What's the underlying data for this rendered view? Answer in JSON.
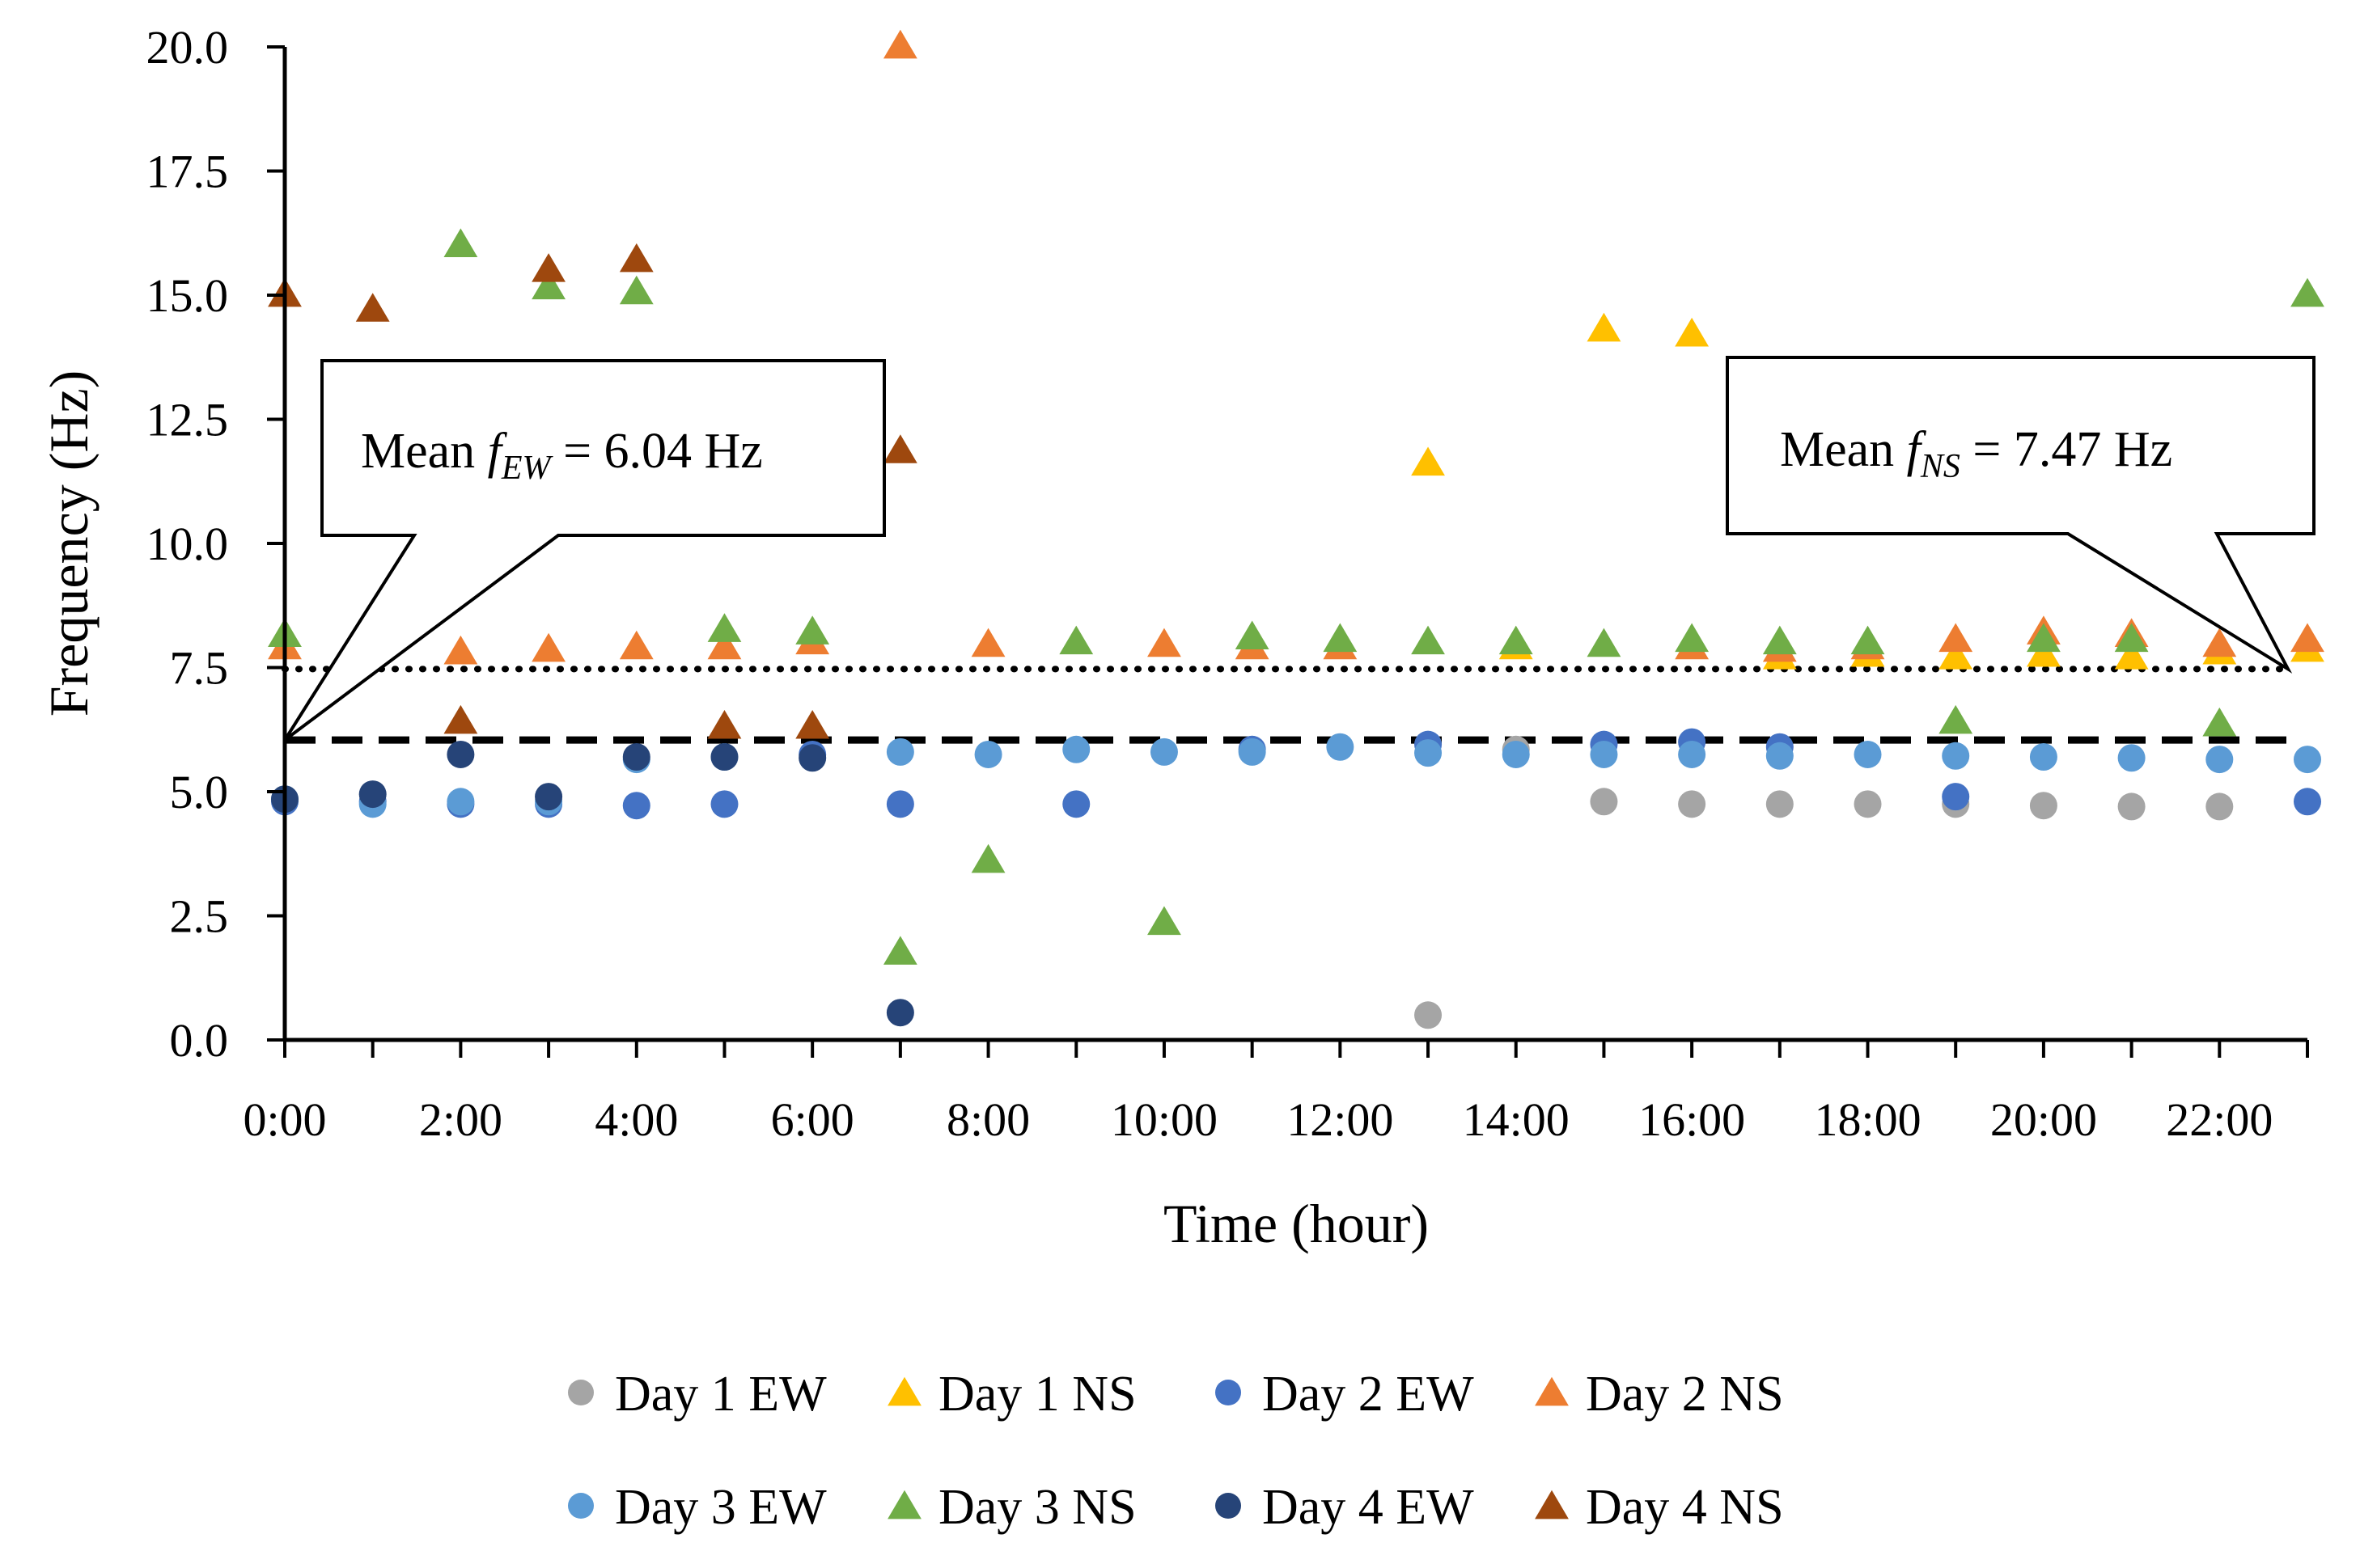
{
  "chart_data": {
    "type": "scatter",
    "xlabel": "Time (hour)",
    "ylabel": "Frequency (Hz)",
    "xlim": [
      0,
      23
    ],
    "ylim": [
      0,
      20
    ],
    "x_ticks": [
      0,
      2,
      4,
      6,
      8,
      10,
      12,
      14,
      16,
      18,
      20,
      22
    ],
    "x_tick_labels": [
      "0:00",
      "2:00",
      "4:00",
      "6:00",
      "8:00",
      "10:00",
      "12:00",
      "14:00",
      "16:00",
      "18:00",
      "20:00",
      "22:00"
    ],
    "y_ticks": [
      0,
      2.5,
      5,
      7.5,
      10,
      12.5,
      15,
      17.5,
      20
    ],
    "y_tick_labels": [
      "0.0",
      "2.5",
      "5.0",
      "7.5",
      "10.0",
      "12.5",
      "15.0",
      "17.5",
      "20.0"
    ],
    "mean_lines": [
      {
        "name": "Mean fEW",
        "value": 6.04,
        "style": "dashed"
      },
      {
        "name": "Mean fNS",
        "value": 7.47,
        "style": "dotted"
      }
    ],
    "callouts": [
      {
        "prefix": "Mean ",
        "symbol": "f",
        "subscript": "EW",
        "suffix": " = 6.04 Hz",
        "anchor_x": 0,
        "anchor_y": 6.04
      },
      {
        "prefix": "Mean ",
        "symbol": "f",
        "subscript": "NS",
        "suffix": " = 7.47 Hz",
        "anchor_x": 23,
        "anchor_y": 7.47
      }
    ],
    "series": [
      {
        "name": "Day 1 EW",
        "marker": "circle",
        "color": "#a5a5a5",
        "points": [
          [
            13,
            0.5
          ],
          [
            14,
            5.85
          ],
          [
            15,
            4.8
          ],
          [
            16,
            4.75
          ],
          [
            17,
            4.75
          ],
          [
            18,
            4.75
          ],
          [
            19,
            4.75
          ],
          [
            20,
            4.72
          ],
          [
            21,
            4.7
          ],
          [
            22,
            4.7
          ]
        ]
      },
      {
        "name": "Day 1 NS",
        "marker": "triangle",
        "color": "#ffc000",
        "points": [
          [
            13,
            11.6
          ],
          [
            14,
            7.9
          ],
          [
            15,
            14.3
          ],
          [
            16,
            14.2
          ],
          [
            17,
            7.7
          ],
          [
            18,
            7.75
          ],
          [
            19,
            7.7
          ],
          [
            20,
            7.75
          ],
          [
            21,
            7.7
          ],
          [
            22,
            7.8
          ],
          [
            23,
            7.85
          ]
        ]
      },
      {
        "name": "Day 2 EW",
        "marker": "circle",
        "color": "#4472c4",
        "points": [
          [
            0,
            4.8
          ],
          [
            1,
            4.8
          ],
          [
            2,
            4.75
          ],
          [
            3,
            4.75
          ],
          [
            4,
            4.72
          ],
          [
            5,
            4.75
          ],
          [
            6,
            5.75
          ],
          [
            7,
            4.75
          ],
          [
            9,
            4.75
          ],
          [
            11,
            5.85
          ],
          [
            13,
            5.95
          ],
          [
            15,
            5.95
          ],
          [
            16,
            6.0
          ],
          [
            17,
            5.9
          ],
          [
            19,
            4.9
          ],
          [
            23,
            4.8
          ]
        ]
      },
      {
        "name": "Day 2 NS",
        "marker": "triangle",
        "color": "#ed7d31",
        "points": [
          [
            0,
            7.9
          ],
          [
            2,
            7.8
          ],
          [
            3,
            7.85
          ],
          [
            4,
            7.9
          ],
          [
            5,
            7.9
          ],
          [
            6,
            8.0
          ],
          [
            7,
            20.0
          ],
          [
            8,
            7.95
          ],
          [
            10,
            7.95
          ],
          [
            11,
            7.9
          ],
          [
            12,
            7.9
          ],
          [
            16,
            7.9
          ],
          [
            17,
            7.85
          ],
          [
            18,
            7.9
          ],
          [
            19,
            8.05
          ],
          [
            20,
            8.2
          ],
          [
            21,
            8.15
          ],
          [
            22,
            7.95
          ],
          [
            23,
            8.05
          ]
        ]
      },
      {
        "name": "Day 3 EW",
        "marker": "circle",
        "color": "#5b9bd5",
        "points": [
          [
            0,
            4.85
          ],
          [
            1,
            4.75
          ],
          [
            2,
            4.8
          ],
          [
            3,
            4.8
          ],
          [
            4,
            5.65
          ],
          [
            5,
            5.7
          ],
          [
            7,
            5.8
          ],
          [
            8,
            5.75
          ],
          [
            9,
            5.85
          ],
          [
            10,
            5.8
          ],
          [
            11,
            5.8
          ],
          [
            12,
            5.9
          ],
          [
            13,
            5.78
          ],
          [
            14,
            5.75
          ],
          [
            15,
            5.75
          ],
          [
            16,
            5.75
          ],
          [
            17,
            5.72
          ],
          [
            18,
            5.75
          ],
          [
            19,
            5.72
          ],
          [
            20,
            5.7
          ],
          [
            21,
            5.68
          ],
          [
            22,
            5.65
          ],
          [
            23,
            5.65
          ]
        ]
      },
      {
        "name": "Day 3 NS",
        "marker": "triangle",
        "color": "#70ad47",
        "points": [
          [
            0,
            8.15
          ],
          [
            2,
            16.0
          ],
          [
            3,
            15.15
          ],
          [
            4,
            15.05
          ],
          [
            5,
            8.25
          ],
          [
            6,
            8.2
          ],
          [
            7,
            1.75
          ],
          [
            8,
            3.6
          ],
          [
            9,
            8.0
          ],
          [
            10,
            2.35
          ],
          [
            11,
            8.1
          ],
          [
            12,
            8.05
          ],
          [
            13,
            8.0
          ],
          [
            14,
            8.0
          ],
          [
            15,
            7.95
          ],
          [
            16,
            8.05
          ],
          [
            17,
            8.0
          ],
          [
            18,
            8.0
          ],
          [
            19,
            6.4
          ],
          [
            20,
            8.05
          ],
          [
            21,
            8.05
          ],
          [
            22,
            6.35
          ],
          [
            23,
            15.0
          ]
        ]
      },
      {
        "name": "Day 4 EW",
        "marker": "circle",
        "color": "#264478",
        "points": [
          [
            0,
            4.85
          ],
          [
            1,
            4.95
          ],
          [
            2,
            5.75
          ],
          [
            3,
            4.9
          ],
          [
            4,
            5.7
          ],
          [
            5,
            5.7
          ],
          [
            6,
            5.68
          ],
          [
            7,
            0.55
          ]
        ]
      },
      {
        "name": "Day 4 NS",
        "marker": "triangle",
        "color": "#9e480e",
        "points": [
          [
            0,
            15.0
          ],
          [
            1,
            14.7
          ],
          [
            2,
            6.4
          ],
          [
            3,
            15.5
          ],
          [
            4,
            15.7
          ],
          [
            5,
            6.3
          ],
          [
            6,
            6.3
          ],
          [
            7,
            11.85
          ]
        ]
      }
    ]
  }
}
